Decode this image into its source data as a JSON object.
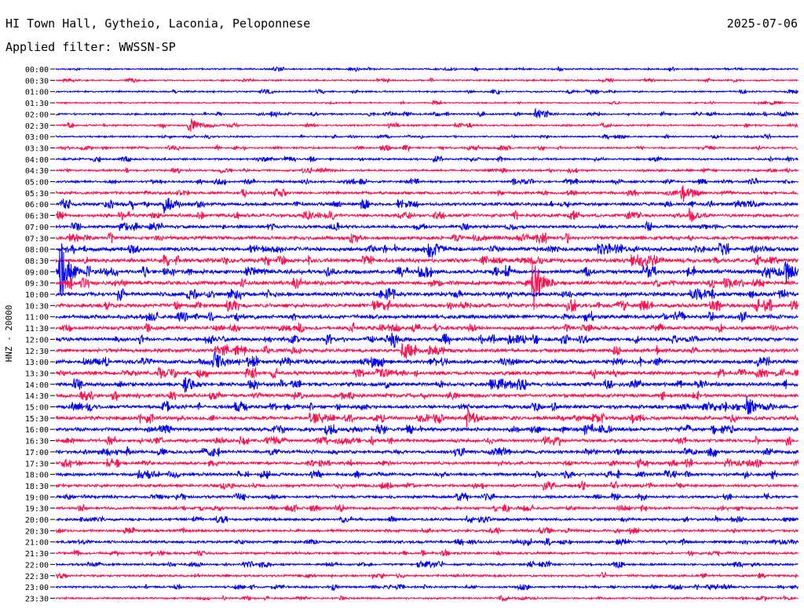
{
  "header": {
    "station": "HI Town Hall, Gytheio, Laconia, Peloponnese",
    "date": "2025-07-06",
    "filter": "Applied filter: WWSSN-SP"
  },
  "chart_data": {
    "type": "line",
    "ylabel": "HNZ - 20000",
    "colors": [
      "#0000ee",
      "#ff0f4f"
    ],
    "row_labels": [
      "00:00",
      "00:30",
      "01:00",
      "01:30",
      "02:00",
      "02:30",
      "03:00",
      "03:30",
      "04:00",
      "04:30",
      "05:00",
      "05:30",
      "06:00",
      "06:30",
      "07:00",
      "07:30",
      "08:00",
      "08:30",
      "09:00",
      "09:30",
      "10:00",
      "10:30",
      "11:00",
      "11:30",
      "12:00",
      "12:30",
      "13:00",
      "13:30",
      "14:00",
      "14:30",
      "15:00",
      "15:30",
      "16:00",
      "16:30",
      "17:00",
      "17:30",
      "18:00",
      "18:30",
      "19:00",
      "19:30",
      "20:00",
      "20:30",
      "21:00",
      "21:30",
      "22:00",
      "22:30",
      "23:00",
      "23:30"
    ],
    "noise_level": [
      0.8,
      0.8,
      0.8,
      0.7,
      0.9,
      0.9,
      0.8,
      0.9,
      1.0,
      1.0,
      1.1,
      1.4,
      1.6,
      1.6,
      1.5,
      1.8,
      2.0,
      2.0,
      2.0,
      2.0,
      2.0,
      2.0,
      1.9,
      1.8,
      1.8,
      1.8,
      1.9,
      1.8,
      1.9,
      1.8,
      1.8,
      1.8,
      1.8,
      1.6,
      1.6,
      1.5,
      1.5,
      1.4,
      1.3,
      1.3,
      1.3,
      1.3,
      1.3,
      1.2,
      1.1,
      1.1,
      1.0,
      0.9
    ],
    "x_range": [
      0,
      30
    ],
    "events": [
      {
        "row": 4,
        "minute": 19.4,
        "amplitude": 9
      },
      {
        "row": 5,
        "minute": 5.4,
        "amplitude": 11
      },
      {
        "row": 11,
        "minute": 25.3,
        "amplitude": 8
      },
      {
        "row": 12,
        "minute": 4.4,
        "amplitude": 13
      },
      {
        "row": 13,
        "minute": 25.6,
        "amplitude": 10
      },
      {
        "row": 16,
        "minute": 15.1,
        "amplitude": 13
      },
      {
        "row": 18,
        "minute": 0.2,
        "amplitude": 40
      },
      {
        "row": 18,
        "minute": 29.5,
        "amplitude": 15
      },
      {
        "row": 19,
        "minute": 19.3,
        "amplitude": 34
      },
      {
        "row": 24,
        "minute": 13.6,
        "amplitude": 8
      },
      {
        "row": 25,
        "minute": 14.0,
        "amplitude": 9
      },
      {
        "row": 26,
        "minute": 6.4,
        "amplitude": 14
      },
      {
        "row": 28,
        "minute": 5.2,
        "amplitude": 11
      },
      {
        "row": 30,
        "minute": 27.9,
        "amplitude": 14
      },
      {
        "row": 31,
        "minute": 16.6,
        "amplitude": 15
      }
    ]
  }
}
